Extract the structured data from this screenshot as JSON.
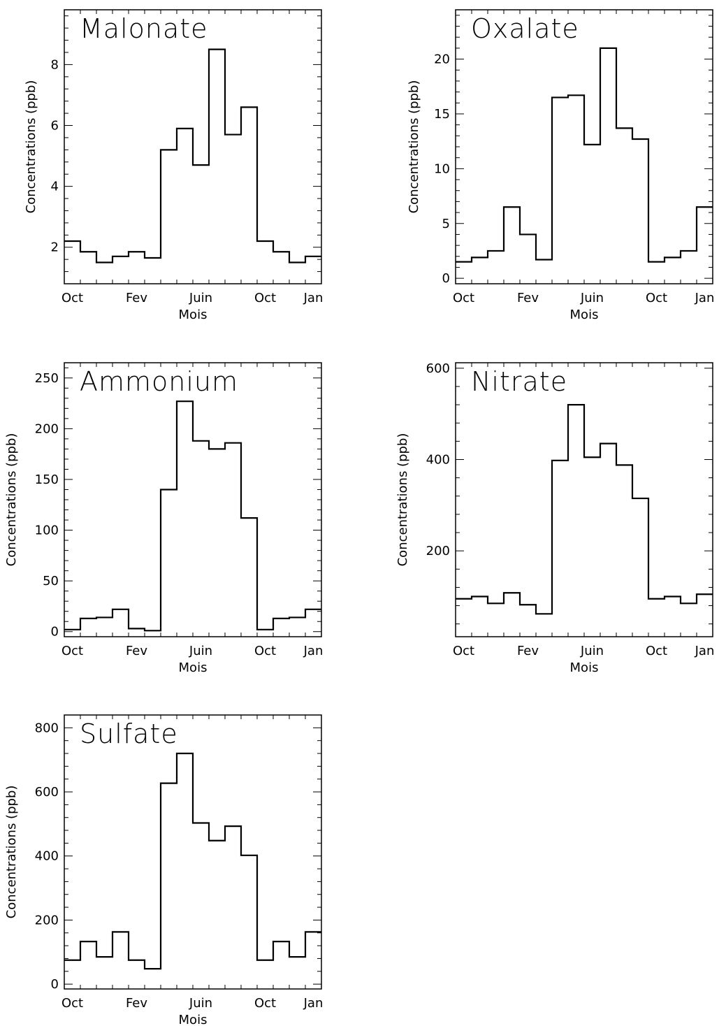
{
  "figure": {
    "ylabel": "Concentrations (ppb)",
    "xlabel": "Mois"
  },
  "chart_data": [
    {
      "type": "line",
      "step": true,
      "title": "Malonate",
      "xlabel": "Mois",
      "ylabel": "Concentrations (ppb)",
      "x_tick_labels": [
        "Oct",
        "Fev",
        "Juin",
        "Oct",
        "Jan"
      ],
      "x_tick_positions": [
        1,
        5,
        9,
        13,
        16
      ],
      "y_ticks": [
        2,
        4,
        6,
        8
      ],
      "ylim": [
        0.8,
        9.8
      ],
      "n_steps": 16,
      "values": [
        2.2,
        1.85,
        1.5,
        1.7,
        1.85,
        1.65,
        5.2,
        5.9,
        4.7,
        8.5,
        5.7,
        6.6,
        2.2,
        1.85,
        1.5,
        1.7
      ]
    },
    {
      "type": "line",
      "step": true,
      "title": "Oxalate",
      "xlabel": "Mois",
      "ylabel": "Concentrations (ppb)",
      "x_tick_labels": [
        "Oct",
        "Fev",
        "Juin",
        "Oct",
        "Jan"
      ],
      "x_tick_positions": [
        1,
        5,
        9,
        13,
        16
      ],
      "y_ticks": [
        0,
        5,
        10,
        15,
        20
      ],
      "ylim": [
        -0.5,
        24.5
      ],
      "n_steps": 16,
      "values": [
        1.5,
        1.9,
        2.5,
        6.5,
        4.0,
        1.7,
        16.5,
        16.7,
        12.2,
        21.0,
        13.7,
        12.7,
        1.5,
        1.9,
        2.5,
        6.5
      ]
    },
    {
      "type": "line",
      "step": true,
      "title": "Ammonium",
      "xlabel": "Mois",
      "ylabel": "Concentrations (ppb)",
      "x_tick_labels": [
        "Oct",
        "Fev",
        "Juin",
        "Oct",
        "Jan"
      ],
      "x_tick_positions": [
        1,
        5,
        9,
        13,
        16
      ],
      "y_ticks": [
        0,
        50,
        100,
        150,
        200,
        250
      ],
      "ylim": [
        -5,
        265
      ],
      "n_steps": 16,
      "values": [
        2,
        13,
        14,
        22,
        3,
        1,
        140,
        227,
        188,
        180,
        186,
        112,
        2,
        13,
        14,
        22
      ]
    },
    {
      "type": "line",
      "step": true,
      "title": "Nitrate",
      "xlabel": "Mois",
      "ylabel": "Concentrations (ppb)",
      "x_tick_labels": [
        "Oct",
        "Fev",
        "Juin",
        "Oct",
        "Jan"
      ],
      "x_tick_positions": [
        1,
        5,
        9,
        13,
        16
      ],
      "y_ticks": [
        200,
        400,
        600
      ],
      "ylim": [
        12,
        612
      ],
      "n_steps": 16,
      "values": [
        95,
        100,
        85,
        108,
        82,
        62,
        398,
        520,
        405,
        435,
        388,
        315,
        95,
        100,
        85,
        105
      ]
    },
    {
      "type": "line",
      "step": true,
      "title": "Sulfate",
      "xlabel": "Mois",
      "ylabel": "Concentrations (ppb)",
      "x_tick_labels": [
        "Oct",
        "Fev",
        "Juin",
        "Oct",
        "Jan"
      ],
      "x_tick_positions": [
        1,
        5,
        9,
        13,
        16
      ],
      "y_ticks": [
        0,
        200,
        400,
        600,
        800
      ],
      "ylim": [
        -15,
        840
      ],
      "n_steps": 16,
      "values": [
        75,
        133,
        85,
        163,
        75,
        48,
        627,
        720,
        503,
        448,
        493,
        402,
        75,
        133,
        85,
        163
      ]
    }
  ]
}
